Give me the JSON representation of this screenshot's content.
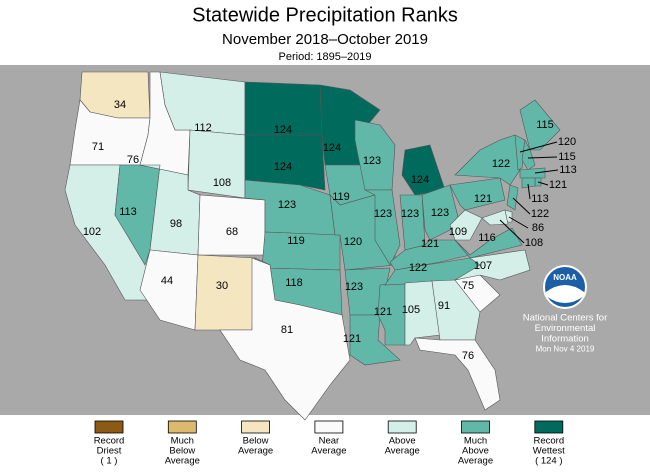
{
  "title": "Statewide Precipitation Ranks",
  "subtitle": "November 2018–October 2019",
  "period": "Period: 1895–2019",
  "states": [
    {
      "rank": 34,
      "color": "#f5e6c2"
    },
    {
      "rank": 71,
      "color": "#fafafa"
    },
    {
      "rank": 102,
      "color": "#d4efe8"
    },
    {
      "rank": 113,
      "color": "#62b8a8"
    },
    {
      "rank": 76,
      "color": "#fafafa"
    },
    {
      "rank": 112,
      "color": "#d4efe8"
    },
    {
      "rank": 108,
      "color": "#d4efe8"
    },
    {
      "rank": 98,
      "color": "#d4efe8"
    },
    {
      "rank": 68,
      "color": "#fafafa"
    },
    {
      "rank": 44,
      "color": "#fafafa"
    },
    {
      "rank": 30,
      "color": "#f5e6c2"
    },
    {
      "rank": 124,
      "color": "#006b5d"
    },
    {
      "rank": 124,
      "color": "#006b5d"
    },
    {
      "rank": 123,
      "color": "#62b8a8"
    },
    {
      "rank": 119,
      "color": "#62b8a8"
    },
    {
      "rank": 118,
      "color": "#62b8a8"
    },
    {
      "rank": 81,
      "color": "#fafafa"
    },
    {
      "rank": 124,
      "color": "#006b5d"
    },
    {
      "rank": 119,
      "color": "#62b8a8"
    },
    {
      "rank": 120,
      "color": "#62b8a8"
    },
    {
      "rank": 123,
      "color": "#62b8a8"
    },
    {
      "rank": 121,
      "color": "#62b8a8"
    },
    {
      "rank": 121,
      "color": "#62b8a8"
    },
    {
      "rank": 123,
      "color": "#62b8a8"
    },
    {
      "rank": 123,
      "color": "#62b8a8"
    },
    {
      "rank": 124,
      "color": "#006b5d"
    },
    {
      "rank": 123,
      "color": "#62b8a8"
    },
    {
      "rank": 123,
      "color": "#62b8a8"
    },
    {
      "rank": 121,
      "color": "#62b8a8"
    },
    {
      "rank": 122,
      "color": "#62b8a8"
    },
    {
      "rank": 105,
      "color": "#d4efe8"
    },
    {
      "rank": 91,
      "color": "#d4efe8"
    },
    {
      "rank": 76,
      "color": "#fafafa"
    },
    {
      "rank": 75,
      "color": "#fafafa"
    },
    {
      "rank": 107,
      "color": "#d4efe8"
    },
    {
      "rank": 116,
      "color": "#62b8a8"
    },
    {
      "rank": 109,
      "color": "#d4efe8"
    },
    {
      "rank": 121,
      "color": "#62b8a8"
    },
    {
      "rank": 122,
      "color": "#62b8a8"
    },
    {
      "rank": 115,
      "color": "#62b8a8"
    },
    {
      "rank": 120,
      "color": "#62b8a8"
    },
    {
      "rank": 115,
      "color": "#62b8a8"
    },
    {
      "rank": 113,
      "color": "#62b8a8"
    },
    {
      "rank": 121,
      "color": "#62b8a8"
    },
    {
      "rank": 113,
      "color": "#62b8a8"
    },
    {
      "rank": 122,
      "color": "#62b8a8"
    },
    {
      "rank": 86,
      "color": "#d4efe8"
    },
    {
      "rank": 108,
      "color": "#d4efe8"
    }
  ],
  "legend": [
    {
      "color": "#8c5a14",
      "lines": [
        "Record",
        "Driest",
        "( 1 )"
      ]
    },
    {
      "color": "#dcb96c",
      "lines": [
        "Much",
        "Below",
        "Average"
      ]
    },
    {
      "color": "#f5e6c2",
      "lines": [
        "Below",
        "Average"
      ]
    },
    {
      "color": "#fafafa",
      "lines": [
        "Near",
        "Average"
      ]
    },
    {
      "color": "#d4efe8",
      "lines": [
        "Above",
        "Average"
      ]
    },
    {
      "color": "#62b8a8",
      "lines": [
        "Much",
        "Above",
        "Average"
      ]
    },
    {
      "color": "#006b5d",
      "lines": [
        "Record",
        "Wettest",
        "( 124 )"
      ]
    }
  ],
  "logo": "NOAA",
  "credit": [
    "National Centers for",
    "Environmental",
    "Information",
    "Mon Nov  4 2019"
  ]
}
